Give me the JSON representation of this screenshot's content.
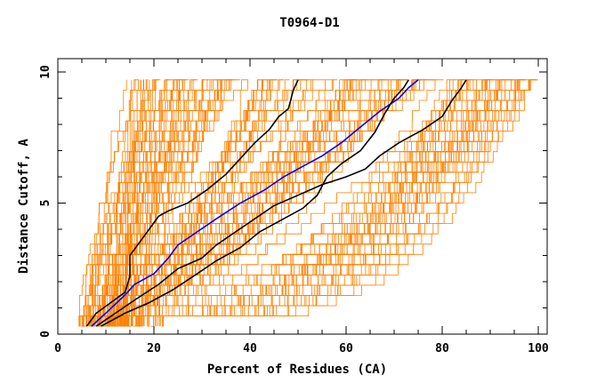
{
  "chart_data": {
    "type": "line",
    "title": "T0964-D1",
    "xlabel": "Percent of Residues (CA)",
    "ylabel": "Distance Cutoff, A",
    "xlim": [
      0,
      101
    ],
    "ylim": [
      0,
      10
    ],
    "x_ticks": [
      0,
      20,
      40,
      60,
      80,
      100
    ],
    "y_ticks": [
      0,
      5,
      10
    ],
    "background_series_color": "#ff8000",
    "highlight_series": [
      {
        "color": "#000000",
        "points": [
          [
            6,
            0.3
          ],
          [
            8,
            0.8
          ],
          [
            11,
            1.2
          ],
          [
            14,
            1.6
          ],
          [
            15,
            2.2
          ],
          [
            15,
            3.0
          ],
          [
            17,
            3.5
          ],
          [
            19,
            4.0
          ],
          [
            21,
            4.5
          ],
          [
            23,
            4.7
          ],
          [
            27,
            5.0
          ],
          [
            31,
            5.5
          ],
          [
            35,
            6.1
          ],
          [
            38,
            6.7
          ],
          [
            41,
            7.3
          ],
          [
            44,
            7.8
          ],
          [
            46,
            8.3
          ],
          [
            48,
            8.6
          ],
          [
            49,
            9.3
          ],
          [
            50,
            9.7
          ]
        ]
      },
      {
        "color": "#0000ff",
        "points": [
          [
            7,
            0.3
          ],
          [
            10,
            0.8
          ],
          [
            14,
            1.5
          ],
          [
            16,
            1.9
          ],
          [
            20,
            2.3
          ],
          [
            23,
            2.9
          ],
          [
            25,
            3.4
          ],
          [
            29,
            3.9
          ],
          [
            33,
            4.4
          ],
          [
            38,
            5.0
          ],
          [
            43,
            5.5
          ],
          [
            47,
            6.0
          ],
          [
            51,
            6.4
          ],
          [
            55,
            6.8
          ],
          [
            59,
            7.3
          ],
          [
            63,
            7.9
          ],
          [
            67,
            8.5
          ],
          [
            71,
            9.0
          ],
          [
            73,
            9.4
          ],
          [
            75,
            9.7
          ]
        ]
      },
      {
        "color": "#000000",
        "points": [
          [
            8,
            0.3
          ],
          [
            12,
            0.8
          ],
          [
            16,
            1.3
          ],
          [
            21,
            1.9
          ],
          [
            25,
            2.5
          ],
          [
            30,
            2.9
          ],
          [
            33,
            3.4
          ],
          [
            37,
            3.9
          ],
          [
            41,
            4.4
          ],
          [
            45,
            4.9
          ],
          [
            50,
            5.3
          ],
          [
            55,
            5.7
          ],
          [
            60,
            6.0
          ],
          [
            64,
            6.3
          ],
          [
            67,
            6.8
          ],
          [
            71,
            7.3
          ],
          [
            76,
            7.8
          ],
          [
            80,
            8.3
          ],
          [
            82,
            8.9
          ],
          [
            84,
            9.4
          ],
          [
            85,
            9.7
          ]
        ]
      },
      {
        "color": "#000000",
        "points": [
          [
            9,
            0.3
          ],
          [
            14,
            0.8
          ],
          [
            19,
            1.2
          ],
          [
            24,
            1.7
          ],
          [
            29,
            2.3
          ],
          [
            33,
            2.8
          ],
          [
            38,
            3.3
          ],
          [
            42,
            3.9
          ],
          [
            47,
            4.4
          ],
          [
            51,
            4.8
          ],
          [
            54,
            5.3
          ],
          [
            56,
            6.0
          ],
          [
            59,
            6.5
          ],
          [
            63,
            7.0
          ],
          [
            66,
            7.7
          ],
          [
            68,
            8.4
          ],
          [
            70,
            9.0
          ],
          [
            72,
            9.4
          ],
          [
            73,
            9.7
          ]
        ]
      }
    ]
  }
}
